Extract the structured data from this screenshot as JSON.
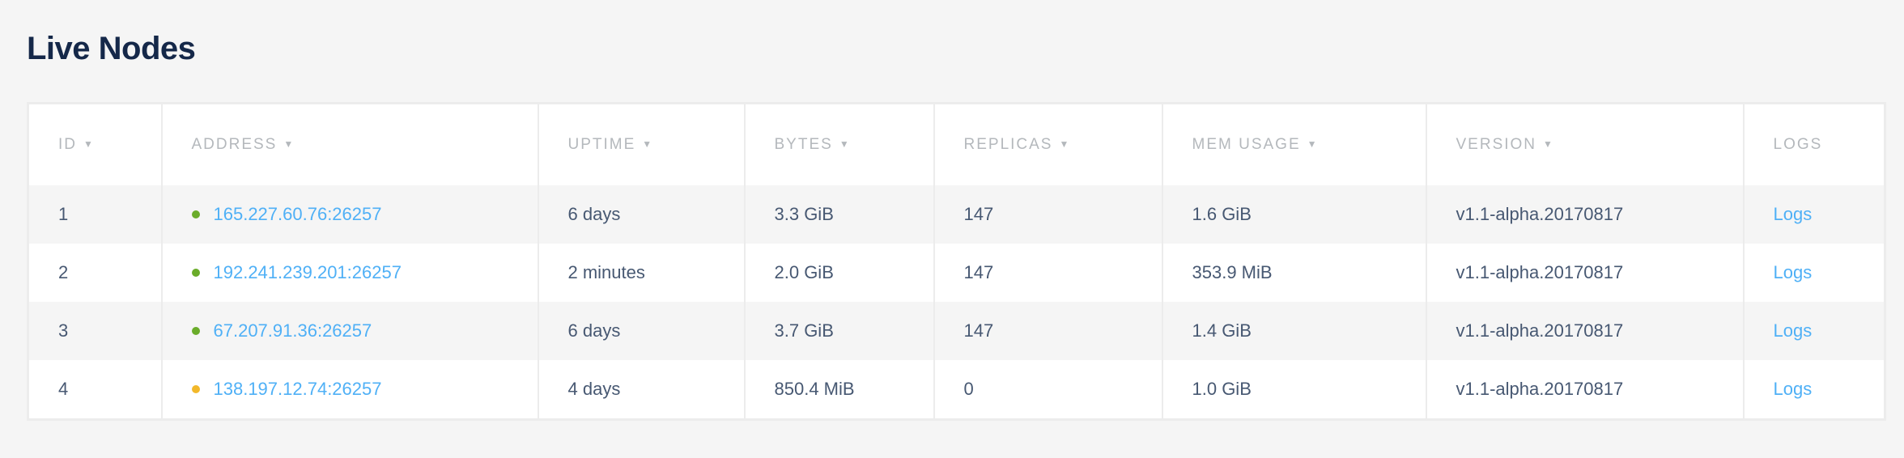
{
  "title": "Live Nodes",
  "columns": [
    {
      "label": "ID",
      "sortable": true
    },
    {
      "label": "ADDRESS",
      "sortable": true
    },
    {
      "label": "UPTIME",
      "sortable": true
    },
    {
      "label": "BYTES",
      "sortable": true
    },
    {
      "label": "REPLICAS",
      "sortable": true
    },
    {
      "label": "MEM USAGE",
      "sortable": true
    },
    {
      "label": "VERSION",
      "sortable": true
    },
    {
      "label": "LOGS",
      "sortable": false
    }
  ],
  "sort_arrow": "▼",
  "status_colors": {
    "healthy": "#6aac2a",
    "suspect": "#f2b82a"
  },
  "rows": [
    {
      "id": "1",
      "status": "healthy",
      "address": "165.227.60.76:26257",
      "uptime": "6 days",
      "bytes": "3.3 GiB",
      "replicas": "147",
      "mem": "1.6 GiB",
      "version": "v1.1-alpha.20170817",
      "logs": "Logs"
    },
    {
      "id": "2",
      "status": "healthy",
      "address": "192.241.239.201:26257",
      "uptime": "2 minutes",
      "bytes": "2.0 GiB",
      "replicas": "147",
      "mem": "353.9 MiB",
      "version": "v1.1-alpha.20170817",
      "logs": "Logs"
    },
    {
      "id": "3",
      "status": "healthy",
      "address": "67.207.91.36:26257",
      "uptime": "6 days",
      "bytes": "3.7 GiB",
      "replicas": "147",
      "mem": "1.4 GiB",
      "version": "v1.1-alpha.20170817",
      "logs": "Logs"
    },
    {
      "id": "4",
      "status": "suspect",
      "address": "138.197.12.74:26257",
      "uptime": "4 days",
      "bytes": "850.4 MiB",
      "replicas": "0",
      "mem": "1.0 GiB",
      "version": "v1.1-alpha.20170817",
      "logs": "Logs"
    }
  ]
}
